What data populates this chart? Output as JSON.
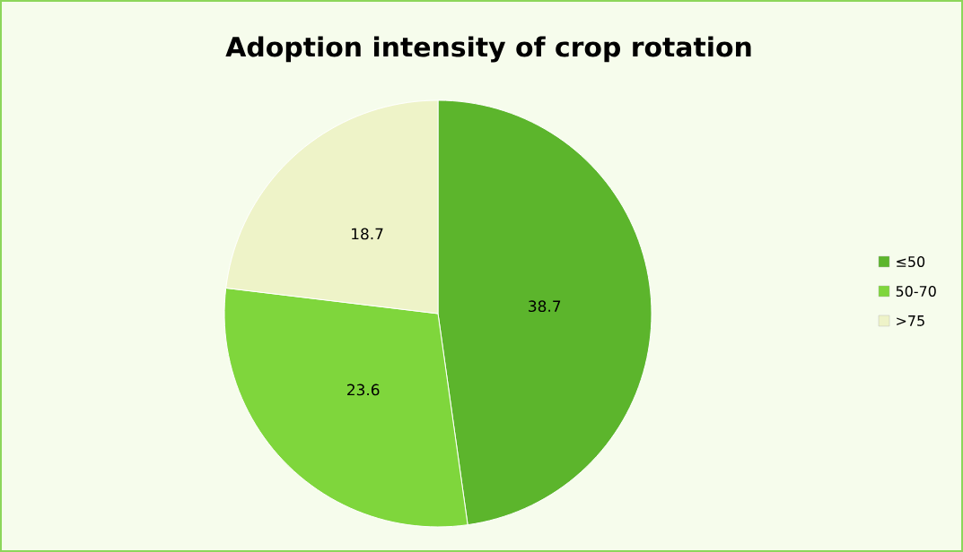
{
  "chart_data": {
    "type": "pie",
    "title": "Adoption intensity of crop rotation",
    "categories": [
      "≤50",
      "50-70",
      ">75"
    ],
    "values": [
      38.7,
      23.6,
      18.7
    ],
    "colors": [
      "#5cb52c",
      "#7fd63c",
      "#eef3c8"
    ],
    "data_labels": true,
    "legend": "right"
  }
}
